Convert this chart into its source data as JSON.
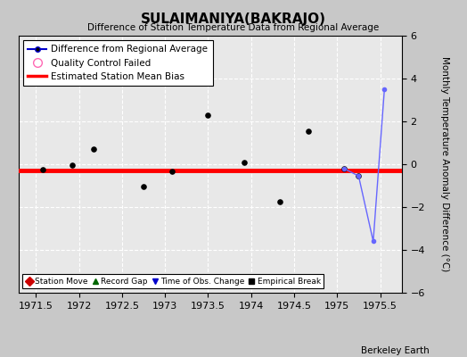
{
  "title": "SULAIMANIYA(BAKRAJO)",
  "subtitle": "Difference of Station Temperature Data from Regional Average",
  "ylabel": "Monthly Temperature Anomaly Difference (°C)",
  "xlim": [
    1971.3,
    1975.75
  ],
  "ylim": [
    -6,
    6
  ],
  "yticks": [
    -6,
    -4,
    -2,
    0,
    2,
    4,
    6
  ],
  "xticks": [
    1971.5,
    1972.0,
    1972.5,
    1973.0,
    1973.5,
    1974.0,
    1974.5,
    1975.0,
    1975.5
  ],
  "xtick_labels": [
    "1971.5",
    "1972",
    "1972.5",
    "1973",
    "1973.5",
    "1974",
    "1974.5",
    "1975",
    "1975.5"
  ],
  "scatter_x": [
    1971.58,
    1971.92,
    1972.17,
    1972.75,
    1973.08,
    1973.5,
    1973.92,
    1974.33,
    1974.67,
    1975.08,
    1975.25
  ],
  "scatter_y": [
    -0.25,
    -0.05,
    0.7,
    -1.05,
    -0.35,
    2.3,
    0.1,
    -1.75,
    1.55,
    -0.2,
    -0.55
  ],
  "line_x": [
    1975.08,
    1975.25,
    1975.42,
    1975.55
  ],
  "line_y": [
    -0.2,
    -0.55,
    -3.6,
    3.5
  ],
  "bias_y": -0.3,
  "bias_color": "#ff0000",
  "line_color": "#6666ff",
  "scatter_color": "#000000",
  "bg_color": "#c8c8c8",
  "plot_bg_color": "#e8e8e8",
  "grid_color": "#ffffff",
  "watermark": "Berkeley Earth",
  "legend1": [
    {
      "label": "Difference from Regional Average",
      "color": "#0000cc",
      "marker": "o",
      "lw": 1.5
    },
    {
      "label": "Quality Control Failed",
      "color": "#ff69b4",
      "marker": "o",
      "lw": 0
    },
    {
      "label": "Estimated Station Mean Bias",
      "color": "#ff0000",
      "lw": 2.0
    }
  ],
  "legend2": [
    {
      "label": "Station Move",
      "color": "#cc0000",
      "marker": "D"
    },
    {
      "label": "Record Gap",
      "color": "#006600",
      "marker": "^"
    },
    {
      "label": "Time of Obs. Change",
      "color": "#0000cc",
      "marker": "v"
    },
    {
      "label": "Empirical Break",
      "color": "#000000",
      "marker": "s"
    }
  ]
}
